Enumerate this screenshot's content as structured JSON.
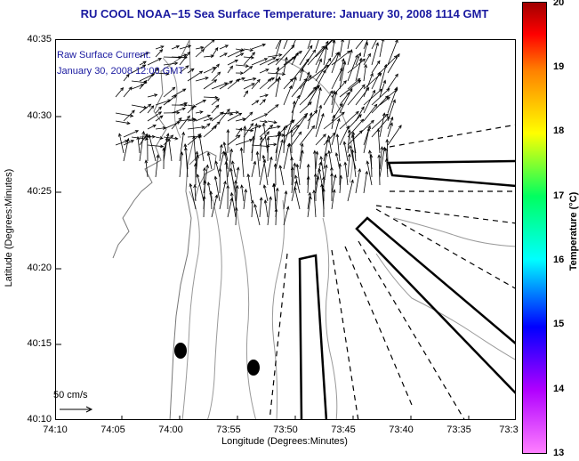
{
  "title": "RU COOL  NOAA−15  Sea Surface Temperature:  January 30, 2008 1114 GMT",
  "current_label": {
    "line1": "Raw Surface Current:",
    "line2": "January 30, 2008 12:00 GMT"
  },
  "scale_label": "50 cm/s",
  "axes": {
    "ylabel": "Latitude (Degrees:Minutes)",
    "xlabel": "Longitude (Degrees:Minutes)",
    "yticks": [
      "40:35",
      "40:30",
      "40:25",
      "40:20",
      "40:15",
      "40:10"
    ],
    "xticks": [
      "74:10",
      "74:05",
      "74:00",
      "73:55",
      "73:50",
      "73:45",
      "73:40",
      "73:35",
      "73:3"
    ]
  },
  "colorbar": {
    "label": "Temperature (°C)",
    "ticks": [
      "20",
      "19",
      "18",
      "17",
      "16",
      "15",
      "14",
      "13"
    ]
  },
  "colors": {
    "title": "#1a1aa0",
    "vectors": "#000000",
    "bathymetry": "#888888"
  }
}
